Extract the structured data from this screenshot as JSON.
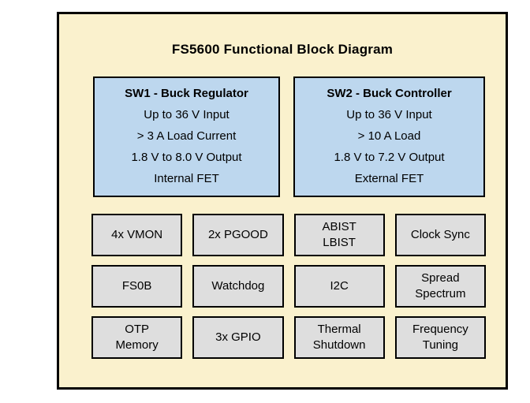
{
  "title": "FS5600 Functional Block Diagram",
  "blocks": {
    "sw1": {
      "title": "SW1 - Buck Regulator",
      "lines": [
        "Up to 36 V Input",
        "> 3 A Load Current",
        "1.8 V to 8.0 V Output",
        "Internal FET"
      ]
    },
    "sw2": {
      "title": "SW2 - Buck Controller",
      "lines": [
        "Up to 36 V Input",
        "> 10 A Load",
        "1.8 V to 7.2 V Output",
        "External FET"
      ]
    }
  },
  "grid": {
    "cells": [
      {
        "label": "4x VMON"
      },
      {
        "label": "2x PGOOD"
      },
      {
        "label": "ABIST\nLBIST"
      },
      {
        "label": "Clock Sync"
      },
      {
        "label": "FS0B"
      },
      {
        "label": "Watchdog"
      },
      {
        "label": "I2C"
      },
      {
        "label": "Spread\nSpectrum"
      },
      {
        "label": "OTP\nMemory"
      },
      {
        "label": "3x GPIO"
      },
      {
        "label": "Thermal\nShutdown"
      },
      {
        "label": "Frequency\nTuning"
      }
    ]
  },
  "colors": {
    "canvas_background": "#FFFFFF",
    "diagram_background": "#FAF1CD",
    "regulator_block_fill": "#BDD7EE",
    "feature_block_fill": "#DEDEDE",
    "border": "#000000",
    "text": "#000000"
  }
}
